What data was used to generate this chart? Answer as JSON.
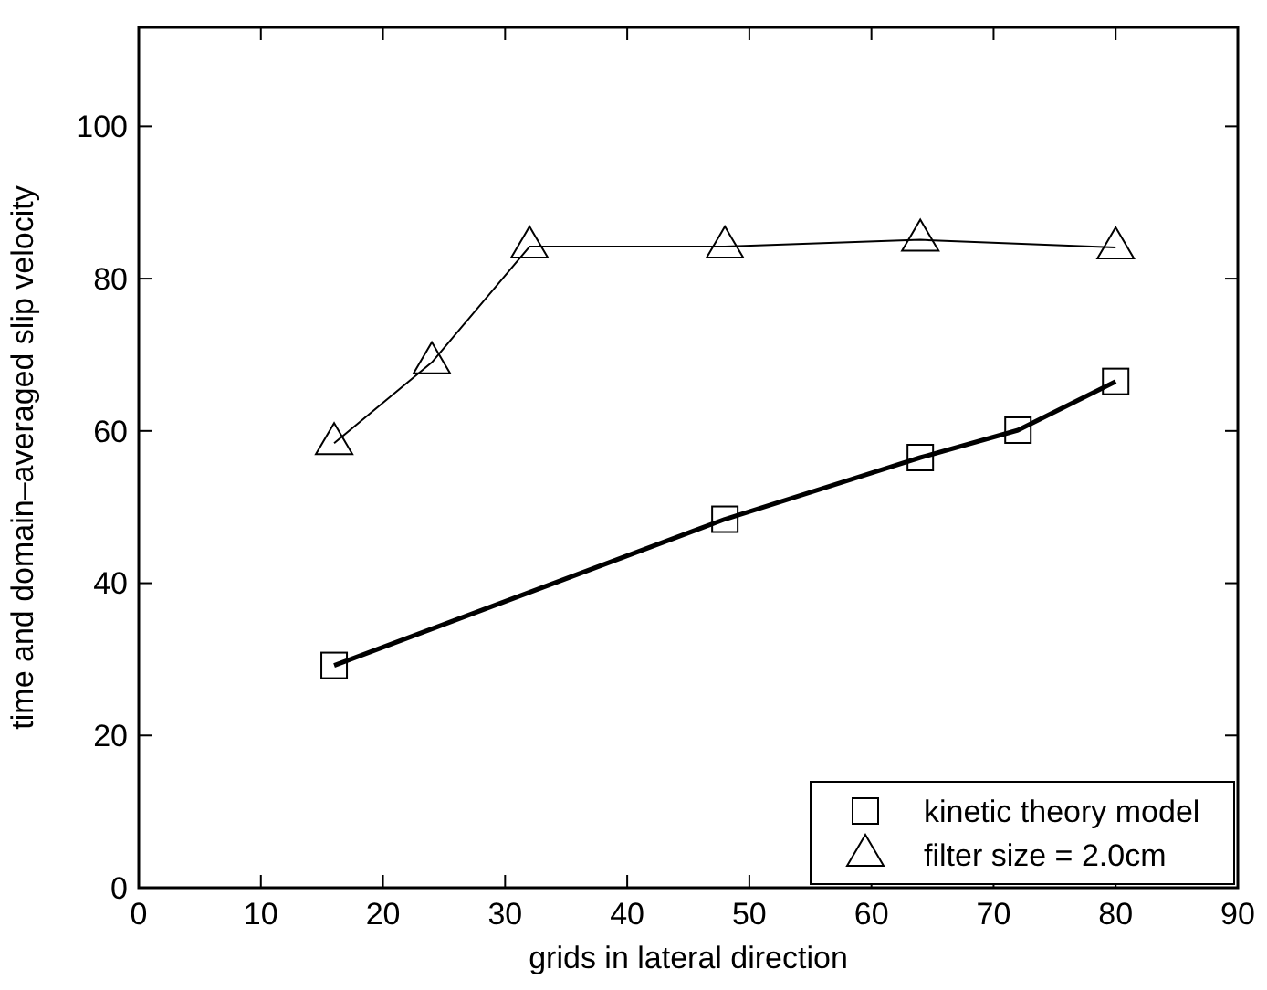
{
  "chart_data": {
    "type": "line",
    "xlabel": "grids in lateral direction",
    "ylabel": "time and domain–averaged slip velocity",
    "xlim": [
      0,
      90
    ],
    "xticks": [
      0,
      10,
      20,
      30,
      40,
      50,
      60,
      70,
      80,
      90
    ],
    "ylim": [
      0,
      113
    ],
    "yticks": [
      0,
      20,
      40,
      60,
      80,
      100
    ],
    "grid": false,
    "legend": "bottom right",
    "series": [
      {
        "name": "kinetic theory model",
        "color": "#000000",
        "marker": "square",
        "x": [
          16,
          48,
          64,
          72,
          80
        ],
        "values": [
          29.2,
          48.4,
          56.5,
          60.1,
          66.5
        ]
      },
      {
        "name": "filter size = 2.0cm",
        "color": "#000000",
        "marker": "triangle",
        "x": [
          16,
          24,
          32,
          48,
          64,
          80
        ],
        "values": [
          58.4,
          69.0,
          84.2,
          84.2,
          85.1,
          84.1
        ]
      }
    ]
  }
}
